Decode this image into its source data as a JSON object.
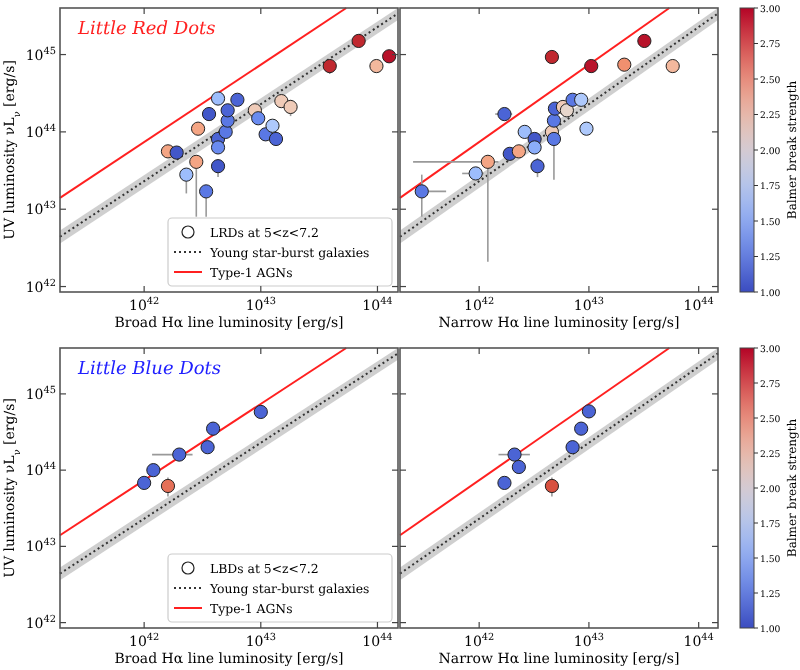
{
  "chart_data": [
    {
      "type": "scatter",
      "title": "Little Red Dots",
      "xlabel": "Broad Hα line luminosity [erg/s]",
      "ylabel": "UV luminosity νL$_{ν}$ [erg/s]",
      "log": "xy",
      "legend": "bottom right",
      "xlim": [
        1.9e+41,
        1.5e+44
      ],
      "ylim": [
        8.5e+41,
        4e+45
      ],
      "xticks": [
        {
          "value": 1e+42,
          "label": "10$^{42}$"
        },
        {
          "value": 1e+43,
          "label": "10$^{43}$"
        },
        {
          "value": 1e+44,
          "label": "10$^{44}$"
        }
      ],
      "yticks": [
        {
          "value": 1e+42,
          "label": "10$^{42}$"
        },
        {
          "value": 1e+43,
          "label": "10$^{43}$"
        },
        {
          "value": 1e+44,
          "label": "10$^{44}$"
        },
        {
          "value": 1e+45,
          "label": "10$^{45}$"
        }
      ],
      "series": [
        {
          "type": "line",
          "name": "Young star-burst galaxies",
          "color": "#333333",
          "line_style": "dotted",
          "x": [
            1.9e+41,
            1.5e+44
          ],
          "values": [
            4.4e+42,
            3.4e+45
          ],
          "lower": [
            3.6e+42,
            2.8e+45
          ],
          "upper": [
            5.3e+42,
            4e+45
          ]
        },
        {
          "type": "line",
          "name": "Type-1 AGNs",
          "color": "#ff2020",
          "line_style": "solid",
          "x": [
            1.9e+41,
            5.4e+43
          ],
          "values": [
            1.4e+43,
            4e+45
          ]
        },
        {
          "type": "scatter",
          "name": "LRDs at 5<z<7.2",
          "marker": "circle",
          "x": [
            1.6e+42,
            1.9e+42,
            2.3e+42,
            2.8e+42,
            2.9e+42,
            3.4e+42,
            3.6e+42,
            4.3e+42,
            4.3e+42,
            4.3e+42,
            4.3e+42,
            5e+42,
            5.2e+42,
            5.2e+42,
            6.3e+42,
            8.9e+42,
            9.5e+42,
            1.1e+43,
            1.26e+43,
            1.35e+43,
            1.5e+43,
            1.8e+43,
            3.9e+43,
            6.9e+43,
            9.8e+43,
            1.26e+44
          ],
          "values": [
            5.6e+43,
            5.4e+43,
            2.8e+43,
            4.1e+43,
            1.1e+44,
            1.7e+43,
            1.7e+44,
            2.7e+44,
            8.1e+43,
            6.3e+43,
            3.6e+43,
            1e+44,
            1.4e+44,
            1.9e+44,
            2.6e+44,
            1.9e+44,
            1.5e+44,
            9.3e+43,
            1.2e+44,
            8.1e+43,
            2.5e+44,
            2.1e+44,
            7.1e+44,
            1.5e+45,
            7.1e+44,
            9.5e+44
          ],
          "colors": [
            "#f4a584",
            "#4257c9",
            "#9dbdfc",
            "#f4a584",
            "#f4a584",
            "#5a78e4",
            "#4257c9",
            "#9dbdfc",
            "#4b64d5",
            "#6a8bef",
            "#4257c9",
            "#5a78e4",
            "#5a78e4",
            "#4b64d5",
            "#4b64d5",
            "#efcbb8",
            "#6a8bef",
            "#5a78e4",
            "#aec9fc",
            "#4b64d5",
            "#efcbb8",
            "#efcbb8",
            "#c0282f",
            "#c0282f",
            "#f3b89d",
            "#b8122a"
          ],
          "errors": [
            null,
            null,
            [
              1.6e+43,
              3.3e+43
            ],
            [
              8e+42,
              5e+43
            ],
            null,
            [
              8e+42,
              2e+43
            ],
            null,
            null,
            null,
            null,
            [
              2.6e+43,
              4.4e+43
            ],
            null,
            null,
            null,
            null,
            null,
            null,
            null,
            null,
            null,
            null,
            [
              1.6e+44,
              2.6e+44
            ],
            [
              5.6e+44,
              8.5e+44
            ],
            null,
            null,
            null
          ]
        }
      ]
    },
    {
      "type": "scatter",
      "xlabel": "Narrow Hα line luminosity [erg/s]",
      "clabel": "Balmer break strength",
      "log": "xy",
      "legend": false,
      "tick_labels": "x",
      "xlim": [
        1.9e+41,
        1.5e+44
      ],
      "ylim": [
        8.5e+41,
        4e+45
      ],
      "xticks": [
        {
          "value": 1e+42,
          "label": "10$^{42}$"
        },
        {
          "value": 1e+43,
          "label": "10$^{43}$"
        },
        {
          "value": 1e+44,
          "label": "10$^{44}$"
        }
      ],
      "yticks": [
        {
          "value": 1e+42,
          "label": null
        },
        {
          "value": 1e+43,
          "label": null
        },
        {
          "value": 1e+44,
          "label": null
        },
        {
          "value": 1e+45,
          "label": null
        }
      ],
      "clim": [
        1,
        3
      ],
      "cticks": [
        {
          "value": 1,
          "label": "1.00"
        },
        {
          "value": 1.25,
          "label": "1.25"
        },
        {
          "value": 1.5,
          "label": "1.50"
        },
        {
          "value": 1.75,
          "label": "1.75"
        },
        {
          "value": 2,
          "label": "2.00"
        },
        {
          "value": 2.25,
          "label": "2.25"
        },
        {
          "value": 2.5,
          "label": "2.50"
        },
        {
          "value": 2.75,
          "label": "2.75"
        },
        {
          "value": 3,
          "label": "3.00"
        }
      ],
      "series": [
        {
          "type": "line",
          "color": "#333333",
          "line_style": "dotted",
          "x": [
            1.9e+41,
            1.5e+44
          ],
          "values": [
            4.4e+42,
            3.4e+45
          ],
          "lower": [
            3.6e+42,
            2.8e+45
          ],
          "upper": [
            5.3e+42,
            4e+45
          ]
        },
        {
          "type": "line",
          "color": "#ff2020",
          "line_style": "solid",
          "x": [
            1.9e+41,
            5.4e+43
          ],
          "values": [
            1.4e+43,
            4e+45
          ]
        },
        {
          "type": "scatter",
          "marker": "circle",
          "x": [
            3e+41,
            9.3e+41,
            1.2e+42,
            1.7e+42,
            1.9e+42,
            2.3e+42,
            2.6e+42,
            3.2e+42,
            3.2e+42,
            3.4e+42,
            4.6e+42,
            4.6e+42,
            4.8e+42,
            4.8e+42,
            4.9e+42,
            5.8e+42,
            6.3e+42,
            7.1e+42,
            8.5e+42,
            9.5e+42,
            1.05e+43,
            2.1e+43,
            3.2e+43,
            5.8e+43
          ],
          "values": [
            1.7e+43,
            2.9e+43,
            4.1e+43,
            1.7e+44,
            5.2e+43,
            5.6e+43,
            1e+44,
            8.1e+43,
            6.3e+43,
            3.6e+43,
            9.3e+44,
            1e+44,
            8.1e+43,
            1.4e+44,
            2e+44,
            2.1e+44,
            1.9e+44,
            2.6e+44,
            2.6e+44,
            1.1e+44,
            7.1e+44,
            7.4e+44,
            1.5e+45,
            7.1e+44
          ],
          "colors": [
            "#5a78e4",
            "#9dbdfc",
            "#f4a584",
            "#4b64d5",
            "#4257c9",
            "#f4a584",
            "#9dbdfc",
            "#4257c9",
            "#8caefa",
            "#4b64d5",
            "#c0282f",
            "#efcbb8",
            "#5a78e4",
            "#5a78e4",
            "#4b64d5",
            "#efcbb8",
            "#e6d6cc",
            "#5a78e4",
            "#aec9fc",
            "#aec9fc",
            "#b8122a",
            "#f0906f",
            "#b8122a",
            "#f3b89d"
          ],
          "errors": [
            [
              8e+42,
              2.8e+43
            ],
            null,
            [
              2.1e+42,
              5e+43
            ],
            null,
            null,
            null,
            null,
            null,
            null,
            [
              2.6e+43,
              4.6e+43
            ],
            null,
            null,
            [
              2.4e+43,
              9e+43
            ],
            null,
            null,
            null,
            null,
            null,
            null,
            null,
            null,
            null,
            null,
            null
          ],
          "xerrors": [
            [
              2.6e+41,
              5e+41
            ],
            [
              7e+41,
              1.1e+42
            ],
            [
              2.5e+41,
              1.5e+42
            ],
            [
              1.4e+42,
              2e+42
            ],
            null,
            null,
            null,
            null,
            null,
            null,
            null,
            null,
            null,
            null,
            null,
            null,
            null,
            null,
            null,
            null,
            null,
            null,
            null,
            null
          ]
        }
      ]
    },
    {
      "type": "scatter",
      "title": "Little Blue Dots",
      "xlabel": "Broad Hα line luminosity [erg/s]",
      "ylabel": "UV luminosity νL$_{ν}$ [erg/s]",
      "log": "xy",
      "legend": "bottom right",
      "xlim": [
        1.9e+41,
        1.5e+44
      ],
      "ylim": [
        8.5e+41,
        4e+45
      ],
      "xticks": [
        {
          "value": 1e+42,
          "label": "10$^{42}$"
        },
        {
          "value": 1e+43,
          "label": "10$^{43}$"
        },
        {
          "value": 1e+44,
          "label": "10$^{44}$"
        }
      ],
      "yticks": [
        {
          "value": 1e+42,
          "label": "10$^{42}$"
        },
        {
          "value": 1e+43,
          "label": "10$^{43}$"
        },
        {
          "value": 1e+44,
          "label": "10$^{44}$"
        },
        {
          "value": 1e+45,
          "label": "10$^{45}$"
        }
      ],
      "series": [
        {
          "type": "line",
          "name": "Young star-burst galaxies",
          "color": "#333333",
          "line_style": "dotted",
          "x": [
            1.9e+41,
            1.5e+44
          ],
          "values": [
            4.4e+42,
            3.4e+45
          ],
          "lower": [
            3.6e+42,
            2.8e+45
          ],
          "upper": [
            5.3e+42,
            4e+45
          ]
        },
        {
          "type": "line",
          "name": "Type-1 AGNs",
          "color": "#ff2020",
          "line_style": "solid",
          "x": [
            1.9e+41,
            5.4e+43
          ],
          "values": [
            1.4e+43,
            4e+45
          ]
        },
        {
          "type": "scatter",
          "name": "LBDs at 5<z<7.2",
          "marker": "circle",
          "x": [
            1e+42,
            1.2e+42,
            1.6e+42,
            2e+42,
            3.5e+42,
            3.9e+42,
            1e+43
          ],
          "values": [
            6.8e+43,
            1e+44,
            6.2e+43,
            1.6e+44,
            2e+44,
            3.5e+44,
            5.8e+44
          ],
          "colors": [
            "#4b64d5",
            "#4b64d5",
            "#e57058",
            "#4b64d5",
            "#4b64d5",
            "#4b64d5",
            "#4b64d5"
          ],
          "errors": [
            null,
            null,
            [
              4.5e+43,
              8e+43
            ],
            null,
            null,
            null,
            null
          ],
          "xerrors": [
            null,
            null,
            null,
            [
              1.17e+42,
              2.6e+42
            ],
            null,
            null,
            null
          ]
        }
      ]
    },
    {
      "type": "scatter",
      "xlabel": "Narrow Hα line luminosity [erg/s]",
      "clabel": "Balmer break strength",
      "log": "xy",
      "legend": false,
      "tick_labels": "x",
      "xlim": [
        1.9e+41,
        1.5e+44
      ],
      "ylim": [
        8.5e+41,
        4e+45
      ],
      "xticks": [
        {
          "value": 1e+42,
          "label": "10$^{42}$"
        },
        {
          "value": 1e+43,
          "label": "10$^{43}$"
        },
        {
          "value": 1e+44,
          "label": "10$^{44}$"
        }
      ],
      "yticks": [
        {
          "value": 1e+42,
          "label": null
        },
        {
          "value": 1e+43,
          "label": null
        },
        {
          "value": 1e+44,
          "label": null
        },
        {
          "value": 1e+45,
          "label": null
        }
      ],
      "clim": [
        1,
        3
      ],
      "cticks": [
        {
          "value": 1,
          "label": "1.00"
        },
        {
          "value": 1.25,
          "label": "1.25"
        },
        {
          "value": 1.5,
          "label": "1.50"
        },
        {
          "value": 1.75,
          "label": "1.75"
        },
        {
          "value": 2,
          "label": "2.00"
        },
        {
          "value": 2.25,
          "label": "2.25"
        },
        {
          "value": 2.5,
          "label": "2.50"
        },
        {
          "value": 2.75,
          "label": "2.75"
        },
        {
          "value": 3,
          "label": "3.00"
        }
      ],
      "series": [
        {
          "type": "line",
          "color": "#333333",
          "line_style": "dotted",
          "x": [
            1.9e+41,
            1.5e+44
          ],
          "values": [
            4.4e+42,
            3.4e+45
          ],
          "lower": [
            3.6e+42,
            2.8e+45
          ],
          "upper": [
            5.3e+42,
            4e+45
          ]
        },
        {
          "type": "line",
          "color": "#ff2020",
          "line_style": "solid",
          "x": [
            1.9e+41,
            5.4e+43
          ],
          "values": [
            1.4e+43,
            4e+45
          ]
        },
        {
          "type": "scatter",
          "marker": "circle",
          "x": [
            1.7e+42,
            2.1e+42,
            2.3e+42,
            4.6e+42,
            7.1e+42,
            8.5e+42,
            1e+43
          ],
          "values": [
            6.8e+43,
            1.6e+44,
            1.1e+44,
            6.2e+43,
            2e+44,
            3.5e+44,
            5.9e+44
          ],
          "colors": [
            "#4b64d5",
            "#4b64d5",
            "#4b64d5",
            "#d8503f",
            "#4b64d5",
            "#4b64d5",
            "#4b64d5"
          ],
          "errors": [
            null,
            null,
            null,
            [
              4.5e+43,
              8e+43
            ],
            null,
            null,
            null
          ],
          "xerrors": [
            null,
            [
              1.5e+42,
              2.9e+42
            ],
            null,
            null,
            null,
            null,
            null
          ]
        }
      ]
    }
  ]
}
